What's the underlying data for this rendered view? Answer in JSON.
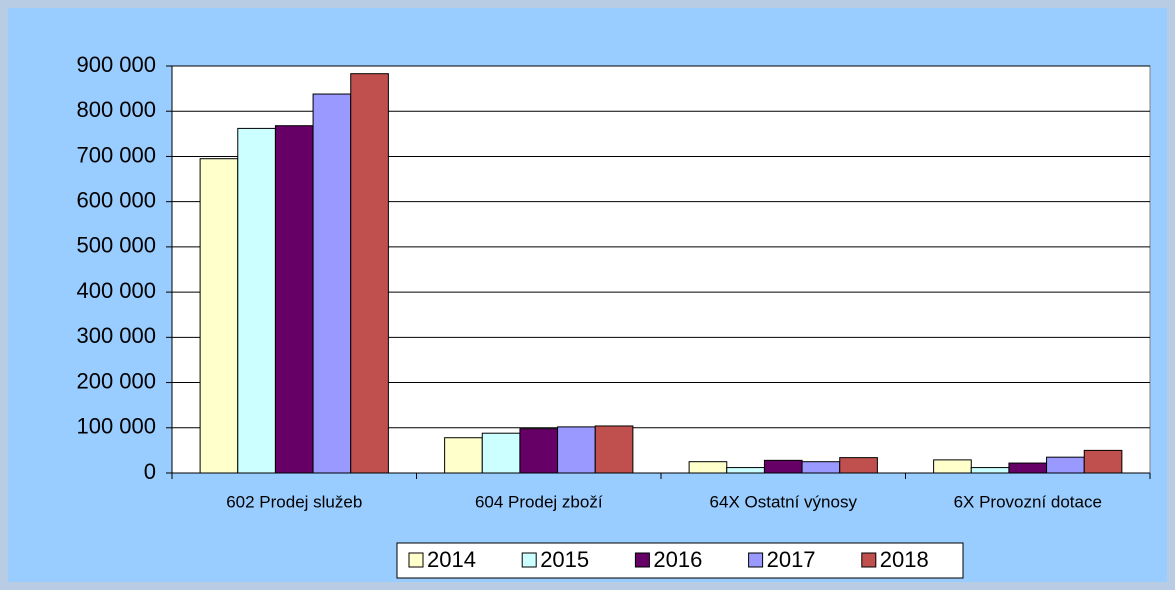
{
  "chart_data": {
    "type": "bar",
    "categories": [
      "602 Prodej služeb",
      "604 Prodej zboží",
      "64X Ostatní výnosy",
      "6X Provozní dotace"
    ],
    "series": [
      {
        "name": "2014",
        "color": "#ffffcc",
        "values": [
          695000,
          78000,
          25000,
          29000
        ]
      },
      {
        "name": "2015",
        "color": "#ccffff",
        "values": [
          762000,
          88000,
          12000,
          12000
        ]
      },
      {
        "name": "2016",
        "color": "#660066",
        "values": [
          768000,
          98000,
          28000,
          22000
        ]
      },
      {
        "name": "2017",
        "color": "#9999ff",
        "values": [
          838000,
          102000,
          25000,
          35000
        ]
      },
      {
        "name": "2018",
        "color": "#c0504d",
        "values": [
          883000,
          104000,
          34000,
          50000
        ]
      }
    ],
    "ylim": [
      0,
      900000
    ],
    "yticks": [
      0,
      {
        "value": 100000,
        "label": "100 000"
      },
      {
        "value": 200000,
        "label": "200 000"
      },
      {
        "value": 300000,
        "label": "300 000"
      },
      {
        "value": 400000,
        "label": "400 000"
      },
      {
        "value": 500000,
        "label": "500 000"
      },
      {
        "value": 600000,
        "label": "600 000"
      },
      {
        "value": 700000,
        "label": "700 000"
      },
      {
        "value": 800000,
        "label": "800 000"
      },
      {
        "value": 900000,
        "label": "900 000"
      }
    ],
    "grid": true,
    "legend": "bottom"
  }
}
